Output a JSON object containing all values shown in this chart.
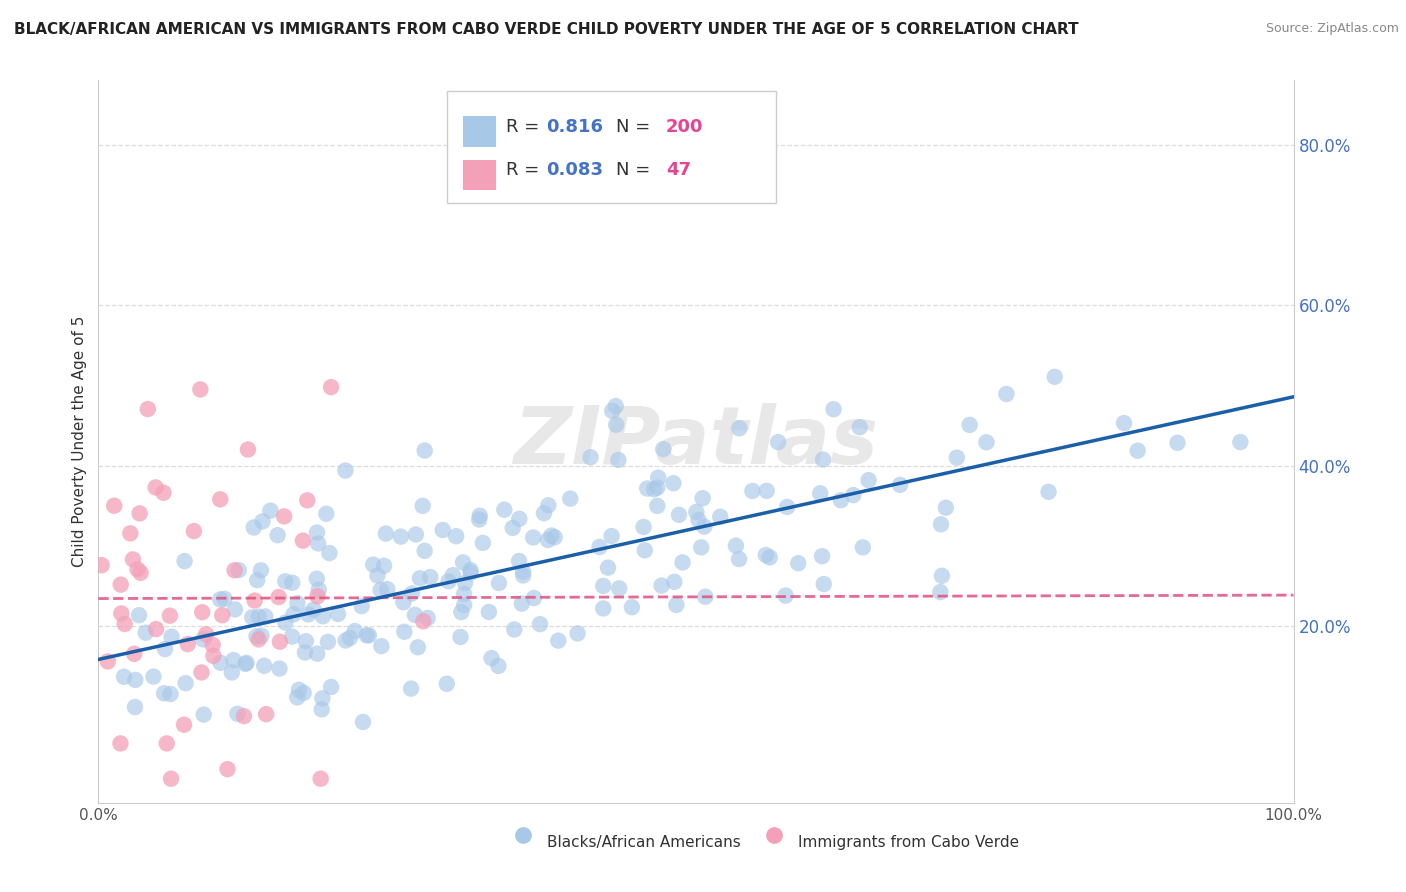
{
  "title": "BLACK/AFRICAN AMERICAN VS IMMIGRANTS FROM CABO VERDE CHILD POVERTY UNDER THE AGE OF 5 CORRELATION CHART",
  "source": "Source: ZipAtlas.com",
  "ylabel": "Child Poverty Under the Age of 5",
  "xlim": [
    0.0,
    1.0
  ],
  "ylim": [
    -0.02,
    0.88
  ],
  "x_tick_labels": [
    "0.0%",
    "100.0%"
  ],
  "y_tick_labels": [
    "20.0%",
    "40.0%",
    "60.0%",
    "80.0%"
  ],
  "y_tick_values": [
    0.2,
    0.4,
    0.6,
    0.8
  ],
  "watermark": "ZIPatlas",
  "legend_blue_r": "0.816",
  "legend_blue_n": "200",
  "legend_pink_r": "0.083",
  "legend_pink_n": "47",
  "blue_color": "#a8c8e8",
  "pink_color": "#f4a0b8",
  "blue_line_color": "#1a5fa8",
  "pink_line_color": "#e05080",
  "background_color": "#ffffff",
  "grid_color": "#dddddd",
  "title_fontsize": 11,
  "label_fontsize": 11,
  "tick_fontsize": 11,
  "seed": 42,
  "blue_n": 200,
  "pink_n": 47
}
